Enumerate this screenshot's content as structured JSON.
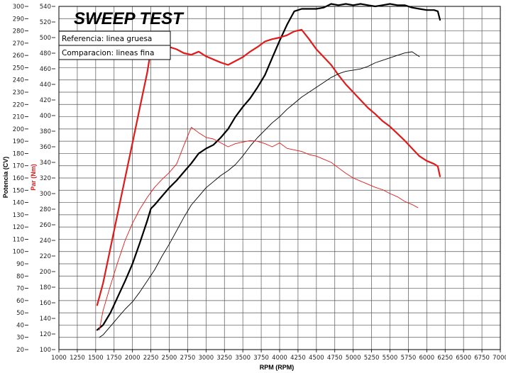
{
  "chart_data": {
    "type": "line",
    "title": "SWEEP TEST",
    "xlabel": "RPM (RPM)",
    "ylabel_left": "Potencia (CV)",
    "ylabel_right": "Par (Nm)",
    "xlim": [
      1000,
      7000
    ],
    "ylim_left": [
      20,
      300
    ],
    "ylim_right": [
      100,
      540
    ],
    "x_ticks": [
      1000,
      1250,
      1500,
      1750,
      2000,
      2250,
      2500,
      2750,
      3000,
      3250,
      3500,
      3750,
      4000,
      4250,
      4500,
      4750,
      5000,
      5250,
      5500,
      5750,
      6000,
      6250,
      6500,
      6750,
      7000
    ],
    "y_ticks_left": [
      20,
      30,
      40,
      50,
      60,
      70,
      80,
      90,
      100,
      110,
      120,
      130,
      140,
      150,
      160,
      170,
      180,
      190,
      200,
      210,
      220,
      230,
      240,
      250,
      260,
      270,
      280,
      290,
      300
    ],
    "y_ticks_right": [
      100,
      120,
      140,
      160,
      180,
      200,
      220,
      240,
      260,
      280,
      300,
      320,
      340,
      360,
      380,
      400,
      420,
      440,
      460,
      480,
      500,
      520,
      540
    ],
    "grid": true,
    "legend": {
      "placement": "top-left",
      "entries": [
        "Referencia: linea gruesa",
        "Comparacion: lineas fina"
      ]
    },
    "colors": {
      "potencia": "#000000",
      "par": "#e01b1b"
    },
    "series": [
      {
        "axis": "left",
        "style": "thick",
        "color": "#000000",
        "x": [
          1520,
          1600,
          1700,
          1800,
          1900,
          2000,
          2100,
          2200,
          2250,
          2300,
          2400,
          2500,
          2600,
          2700,
          2800,
          2900,
          3000,
          3100,
          3200,
          3300,
          3400,
          3500,
          3600,
          3700,
          3800,
          3900,
          4000,
          4100,
          4200,
          4300,
          4400,
          4500,
          4600,
          4700,
          4800,
          4900,
          5000,
          5100,
          5200,
          5300,
          5400,
          5500,
          5600,
          5700,
          5800,
          5900,
          6000,
          6100,
          6150,
          6180
        ],
        "y": [
          36,
          40,
          50,
          63,
          76,
          90,
          107,
          125,
          135,
          138,
          145,
          152,
          158,
          165,
          172,
          180,
          184,
          187,
          193,
          200,
          210,
          218,
          225,
          234,
          244,
          258,
          272,
          285,
          296,
          298,
          298,
          298,
          299,
          302,
          301,
          302,
          301,
          302,
          301,
          300,
          301,
          302,
          301,
          301,
          299,
          298,
          297,
          297,
          296,
          289
        ]
      },
      {
        "axis": "right",
        "style": "thick",
        "color": "#e01b1b",
        "x": [
          1520,
          1600,
          1700,
          1800,
          1900,
          2000,
          2100,
          2200,
          2230,
          2260,
          2300,
          2400,
          2500,
          2600,
          2700,
          2800,
          2900,
          3000,
          3100,
          3200,
          3300,
          3400,
          3500,
          3600,
          3700,
          3800,
          3900,
          4000,
          4100,
          4200,
          4300,
          4400,
          4500,
          4600,
          4700,
          4800,
          4900,
          5000,
          5100,
          5200,
          5300,
          5400,
          5500,
          5600,
          5700,
          5800,
          5900,
          6000,
          6100,
          6150,
          6180
        ],
        "y": [
          157,
          185,
          230,
          275,
          320,
          365,
          410,
          455,
          472,
          480,
          480,
          485,
          488,
          485,
          480,
          478,
          482,
          476,
          472,
          468,
          465,
          470,
          475,
          482,
          488,
          495,
          498,
          500,
          503,
          508,
          510,
          498,
          485,
          475,
          465,
          452,
          440,
          430,
          420,
          410,
          402,
          393,
          386,
          377,
          368,
          358,
          348,
          342,
          338,
          335,
          322
        ]
      },
      {
        "axis": "left",
        "style": "thin",
        "color": "#000000",
        "x": [
          1550,
          1600,
          1700,
          1800,
          1900,
          2000,
          2100,
          2200,
          2300,
          2400,
          2500,
          2600,
          2700,
          2800,
          2900,
          3000,
          3100,
          3200,
          3300,
          3400,
          3500,
          3600,
          3700,
          3800,
          3900,
          4000,
          4100,
          4200,
          4300,
          4400,
          4500,
          4600,
          4700,
          4800,
          4900,
          5000,
          5100,
          5200,
          5300,
          5400,
          5500,
          5600,
          5700,
          5800,
          5900
        ],
        "y": [
          30,
          32,
          39,
          46,
          53,
          59,
          67,
          76,
          85,
          96,
          106,
          117,
          128,
          138,
          145,
          152,
          157,
          162,
          166,
          171,
          178,
          186,
          193,
          199,
          205,
          210,
          216,
          221,
          226,
          230,
          234,
          238,
          242,
          245,
          247,
          248,
          249,
          251,
          254,
          256,
          258,
          260,
          262,
          263,
          259
        ]
      },
      {
        "axis": "right",
        "style": "thin",
        "color": "#e01b1b",
        "x": [
          1550,
          1600,
          1700,
          1800,
          1900,
          2000,
          2100,
          2200,
          2300,
          2400,
          2500,
          2600,
          2700,
          2800,
          2900,
          3000,
          3100,
          3200,
          3300,
          3400,
          3500,
          3600,
          3700,
          3800,
          3900,
          4000,
          4100,
          4200,
          4300,
          4400,
          4500,
          4600,
          4700,
          4800,
          4900,
          5000,
          5100,
          5200,
          5300,
          5400,
          5500,
          5600,
          5700,
          5800,
          5880
        ],
        "y": [
          125,
          150,
          182,
          212,
          240,
          262,
          280,
          295,
          308,
          318,
          327,
          338,
          362,
          385,
          378,
          372,
          370,
          365,
          360,
          364,
          366,
          368,
          367,
          364,
          360,
          365,
          358,
          356,
          354,
          350,
          348,
          344,
          340,
          333,
          326,
          320,
          316,
          312,
          308,
          305,
          300,
          296,
          290,
          286,
          282
        ]
      }
    ]
  }
}
